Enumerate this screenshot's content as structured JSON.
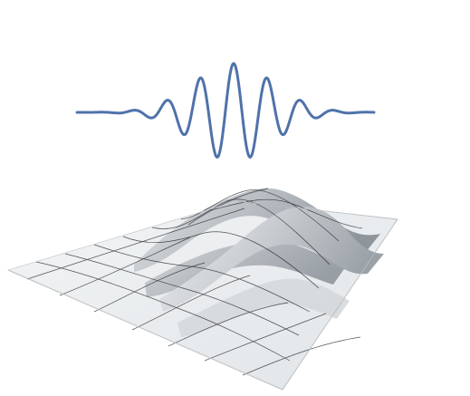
{
  "figure": {
    "type": "wave-packet-illustration",
    "parts": [
      "1d-wave-packet-curve",
      "2d-wave-packet-surface"
    ],
    "colors": {
      "background": "#ffffff",
      "curve": "#4f72aa",
      "surface_light": "#eef0f1",
      "surface_shadow": "#a7adb2",
      "grid_line": "#1a1c1e"
    },
    "wave_packet": {
      "oscillations_visible": 6,
      "envelope": "gaussian"
    }
  }
}
